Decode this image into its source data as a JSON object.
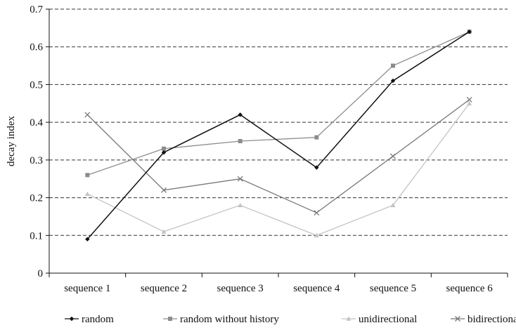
{
  "chart_data": {
    "type": "line",
    "title": "",
    "xlabel": "",
    "ylabel": "decay index",
    "ylim": [
      0,
      0.7
    ],
    "yticks": [
      "0",
      "0.1",
      "0.2",
      "0.3",
      "0.4",
      "0.5",
      "0.6",
      "0.7"
    ],
    "grid": "horizontal dashed",
    "legend_position": "bottom",
    "categories": [
      "sequence 1",
      "sequence 2",
      "sequence 3",
      "sequence 4",
      "sequence 5",
      "sequence 6"
    ],
    "series": [
      {
        "name": "random",
        "values": [
          0.09,
          0.32,
          0.42,
          0.28,
          0.51,
          0.64
        ],
        "color": "#111111",
        "marker": "diamond"
      },
      {
        "name": "random without history",
        "values": [
          0.26,
          0.33,
          0.35,
          0.36,
          0.55,
          0.64
        ],
        "color": "#8c8c8c",
        "marker": "square"
      },
      {
        "name": "unidirectional",
        "values": [
          0.21,
          0.11,
          0.18,
          0.1,
          0.18,
          0.45
        ],
        "color": "#c4c4c4",
        "marker": "triangle"
      },
      {
        "name": "bidirectional",
        "values": [
          0.42,
          0.22,
          0.25,
          0.16,
          0.31,
          0.46
        ],
        "color": "#777777",
        "marker": "cross"
      }
    ]
  }
}
